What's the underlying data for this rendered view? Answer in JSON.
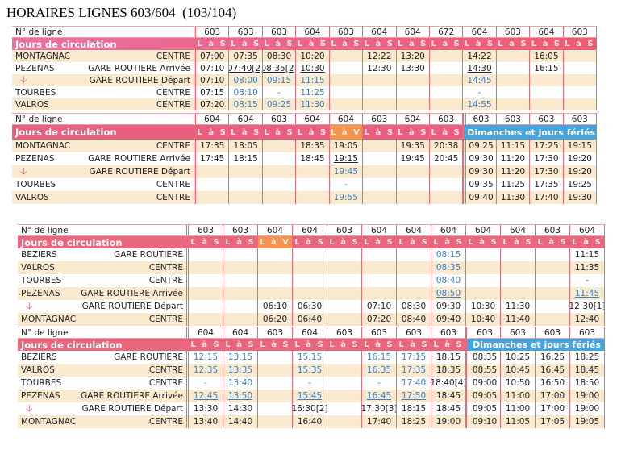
{
  "title": "HORAIRES LIGNES 603/604  (103/104)",
  "labels": {
    "line_no": "N° de ligne",
    "days": "Jours de circulation"
  },
  "tA": {
    "lines": [
      "603",
      "603",
      "603",
      "604",
      "603",
      "604",
      "604",
      "672",
      "604",
      "603",
      "604",
      "603"
    ],
    "days": [
      "L à S",
      "L à S",
      "L à S",
      "L à S",
      "L à S",
      "L à S",
      "L à S",
      "L à S",
      "L à S",
      "L à S",
      "L à S",
      "L à S"
    ],
    "rows": [
      {
        "city": "MONTAGNAC",
        "stop": "CENTRE",
        "cells": [
          "07:00",
          "07:35",
          "08:30",
          "10:20",
          "",
          "12:22",
          "13:20",
          "",
          "14:22",
          "",
          "16:05",
          ""
        ]
      },
      {
        "city": "PEZENAS",
        "stop": "GARE ROUTIERE Arrivée",
        "cells": [
          "07:10",
          {
            "t": "07:40[2]",
            "u": 1
          },
          {
            "t": "08:35[2]",
            "u": 1
          },
          {
            "t": "10:30",
            "u": 1
          },
          "",
          "12:30",
          "13:30",
          "",
          {
            "t": "14:30",
            "u": 1
          },
          "",
          "16:15",
          ""
        ]
      },
      {
        "arrow": true,
        "stop": "GARE ROUTIERE Départ",
        "cells": [
          "07:10",
          {
            "t": "08:00",
            "b": 1
          },
          {
            "t": "09:15",
            "b": 1
          },
          {
            "t": "11:15",
            "b": 1
          },
          "",
          "",
          "",
          "",
          {
            "t": "14:45",
            "b": 1
          },
          "",
          "",
          ""
        ]
      },
      {
        "city": "TOURBES",
        "stop": "CENTRE",
        "cells": [
          "07:15",
          {
            "t": "08:10",
            "b": 1
          },
          {
            "t": "-",
            "b": 1
          },
          {
            "t": "11:25",
            "b": 1
          },
          "",
          "",
          "",
          "",
          {
            "t": "-",
            "b": 1
          },
          "",
          "",
          ""
        ]
      },
      {
        "city": "VALROS",
        "stop": "CENTRE",
        "cells": [
          "07:20",
          {
            "t": "08:15",
            "b": 1
          },
          {
            "t": "09:25",
            "b": 1
          },
          {
            "t": "11:30",
            "b": 1
          },
          "",
          "",
          "",
          "",
          {
            "t": "14:55",
            "b": 1
          },
          "",
          "",
          ""
        ]
      }
    ]
  },
  "tB": {
    "lines": [
      "604",
      "604",
      "603",
      "604",
      "604",
      "603",
      "604",
      "603",
      "603",
      "603",
      "603",
      "603"
    ],
    "days": [
      "L à S",
      "L à S",
      "L à S",
      "L à S",
      "L à V",
      "L à S",
      "L à S",
      "L à S"
    ],
    "sunday_label": "Dimanches et jours fériés",
    "rows": [
      {
        "city": "MONTAGNAC",
        "stop": "CENTRE",
        "cells": [
          "17:35",
          "18:05",
          "",
          "18:35",
          "19:05",
          "",
          "19:35",
          "20:38",
          "09:25",
          "11:15",
          "17:25",
          "19:15"
        ]
      },
      {
        "city": "PEZENAS",
        "stop": "GARE ROUTIERE Arrivée",
        "cells": [
          "17:45",
          "18:15",
          "",
          "18:45",
          {
            "t": "19:15",
            "u": 1
          },
          "",
          "19:45",
          "20:45",
          "09:30",
          "11:20",
          "17:30",
          "19:20"
        ]
      },
      {
        "arrow": true,
        "stop": "GARE ROUTIERE Départ",
        "cells": [
          "",
          "",
          "",
          "",
          {
            "t": "19:45",
            "b": 1
          },
          "",
          "",
          "",
          "09:30",
          "11:20",
          "17:30",
          "19:20"
        ]
      },
      {
        "city": "TOURBES",
        "stop": "CENTRE",
        "cells": [
          "",
          "",
          "",
          "",
          {
            "t": "-",
            "b": 1
          },
          "",
          "",
          "",
          "09:35",
          "11:25",
          "17:35",
          "19:25"
        ]
      },
      {
        "city": "VALROS",
        "stop": "CENTRE",
        "cells": [
          "",
          "",
          "",
          "",
          {
            "t": "19:55",
            "b": 1
          },
          "",
          "",
          "",
          "09:40",
          "11:30",
          "17:40",
          "19:30"
        ]
      }
    ]
  },
  "tC": {
    "lines": [
      "603",
      "603",
      "604",
      "604",
      "603",
      "604",
      "604",
      "604",
      "604",
      "604",
      "603",
      "604"
    ],
    "days": [
      "L à S",
      "L à S",
      "L à V",
      "L à S",
      "L à S",
      "L à S",
      "L à S",
      "L à S",
      "L à S",
      "L à S",
      "L à S",
      "L à S"
    ],
    "rows": [
      {
        "city": "BEZIERS",
        "stop": "GARE ROUTIERE",
        "cells": [
          "",
          "",
          "",
          "",
          "",
          "",
          "",
          {
            "t": "08:15",
            "b": 1
          },
          "",
          "",
          "",
          "11:15"
        ]
      },
      {
        "city": "VALROS",
        "stop": "CENTRE",
        "cells": [
          "",
          "",
          "",
          "",
          "",
          "",
          "",
          {
            "t": "08:35",
            "b": 1
          },
          "",
          "",
          "",
          "11:35"
        ]
      },
      {
        "city": "TOURBES",
        "stop": "CENTRE",
        "cells": [
          "",
          "",
          "",
          "",
          "",
          "",
          "",
          {
            "t": "08:40",
            "b": 1
          },
          "",
          "",
          "",
          "-"
        ]
      },
      {
        "city": "PEZENAS",
        "stop": "GARE ROUTIERE Arrivée",
        "cells": [
          "",
          "",
          "",
          "",
          "",
          "",
          "",
          {
            "t": "08:50",
            "b": 1,
            "u": 1
          },
          "",
          "",
          "",
          {
            "t": "11:45",
            "b": 1,
            "u": 1
          }
        ]
      },
      {
        "arrow": true,
        "stop": "GARE ROUTIERE Départ",
        "cells": [
          "",
          "",
          "06:10",
          "06:30",
          "",
          "07:10",
          "08:30",
          "09:30",
          "10:30",
          "11:30",
          "",
          "12:30[1]"
        ]
      },
      {
        "city": "MONTAGNAC",
        "stop": "CENTRE",
        "cells": [
          "",
          "",
          "06:20",
          "06:40",
          "",
          "07:20",
          "08:40",
          "09:40",
          "10:40",
          "11:40",
          "",
          "12:40"
        ]
      }
    ]
  },
  "tD": {
    "lines": [
      "604",
      "604",
      "603",
      "604",
      "603",
      "603",
      "603",
      "603",
      "603",
      "603",
      "603",
      "603"
    ],
    "days": [
      "L à S",
      "L à S",
      "L à S",
      "L à S",
      "L à S",
      "L à S",
      "L à S",
      "L à S"
    ],
    "sunday_label": "Dimanches et jours fériés",
    "rows": [
      {
        "city": "BEZIERS",
        "stop": "GARE ROUTIERE",
        "cells": [
          {
            "t": "12:15",
            "b": 1
          },
          {
            "t": "13:15",
            "b": 1
          },
          "",
          {
            "t": "15:15",
            "b": 1
          },
          "",
          {
            "t": "16:15",
            "b": 1
          },
          {
            "t": "17:15",
            "b": 1
          },
          "18:15",
          "08:35",
          "10:25",
          "16:25",
          "18:25"
        ]
      },
      {
        "city": "VALROS",
        "stop": "CENTRE",
        "cells": [
          {
            "t": "12:35",
            "b": 1
          },
          {
            "t": "13:35",
            "b": 1
          },
          "",
          {
            "t": "15:35",
            "b": 1
          },
          "",
          {
            "t": "16:35",
            "b": 1
          },
          {
            "t": "17:35",
            "b": 1
          },
          "18:35",
          "08:55",
          "10:45",
          "16:45",
          "18:45"
        ]
      },
      {
        "city": "TOURBES",
        "stop": "CENTRE",
        "cells": [
          {
            "t": "-",
            "b": 1
          },
          {
            "t": "13:40",
            "b": 1
          },
          "",
          {
            "t": "-",
            "b": 1
          },
          "",
          {
            "t": "-",
            "b": 1
          },
          {
            "t": "17:40",
            "b": 1
          },
          "18:40[4]",
          "09:00",
          "10:50",
          "16:50",
          "18:50"
        ]
      },
      {
        "city": "PEZENAS",
        "stop": "GARE ROUTIERE Arrivée",
        "cells": [
          {
            "t": "12:45",
            "b": 1,
            "u": 1
          },
          {
            "t": "13:50",
            "b": 1,
            "u": 1
          },
          "",
          {
            "t": "15:45",
            "b": 1,
            "u": 1
          },
          "",
          {
            "t": "16:45",
            "b": 1,
            "u": 1
          },
          {
            "t": "17:50",
            "b": 1,
            "u": 1
          },
          "18:45",
          "09:05",
          "11:00",
          "17:00",
          "19:00"
        ]
      },
      {
        "arrow": true,
        "stop": "GARE ROUTIERE Départ",
        "cells": [
          "13:30",
          "14:30",
          "",
          "16:30[2]",
          "",
          "17:30[3]",
          "18:15",
          "18:45",
          "09:05",
          "11:00",
          "17:00",
          "19:00"
        ]
      },
      {
        "city": "MONTAGNAC",
        "stop": "CENTRE",
        "cells": [
          "13:40",
          "14:40",
          "",
          "16:40",
          "",
          "17:40",
          "18:25",
          "19:00",
          "09:10",
          "11:05",
          "17:05",
          "19:05"
        ]
      }
    ]
  }
}
